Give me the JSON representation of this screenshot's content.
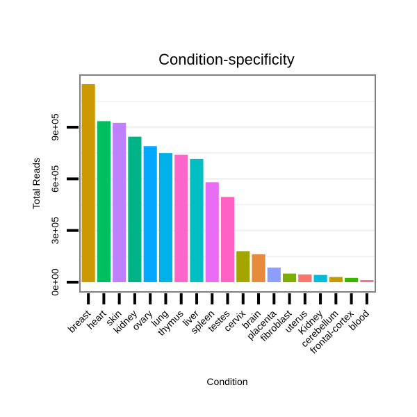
{
  "chart_data": {
    "type": "bar",
    "title": "Condition-specificity",
    "xlabel": "Condition",
    "ylabel": "Total Reads",
    "categories": [
      "breast",
      "heart",
      "skin",
      "kidney",
      "ovary",
      "lung",
      "thymus",
      "liver",
      "spleen",
      "testes",
      "cervix",
      "brain",
      "placenta",
      "fibroblast",
      "uterus",
      "Kidney",
      "cerebellum",
      "frontal-cortex",
      "blood"
    ],
    "values": [
      1150000,
      935000,
      925000,
      845000,
      790000,
      750000,
      740000,
      715000,
      580000,
      495000,
      180000,
      162000,
      85000,
      50000,
      45000,
      42000,
      30000,
      25000,
      12000
    ],
    "colors": [
      "#cc9900",
      "#00bf5f",
      "#bf80ff",
      "#00b386",
      "#00a8ff",
      "#00b0e6",
      "#ff66cc",
      "#00bfc4",
      "#e76bf3",
      "#ff61c3",
      "#a3a500",
      "#e68a3c",
      "#8c9eff",
      "#7cae00",
      "#f8766d",
      "#00bcd8",
      "#c49a00",
      "#39b600",
      "#ff6c91"
    ],
    "yticks": [
      0,
      300000,
      600000,
      900000
    ],
    "ytick_labels": [
      "0e+00",
      "3e+05",
      "6e+05",
      "9e+05"
    ],
    "ylim": [
      -60000,
      1200000
    ],
    "grid": true
  }
}
